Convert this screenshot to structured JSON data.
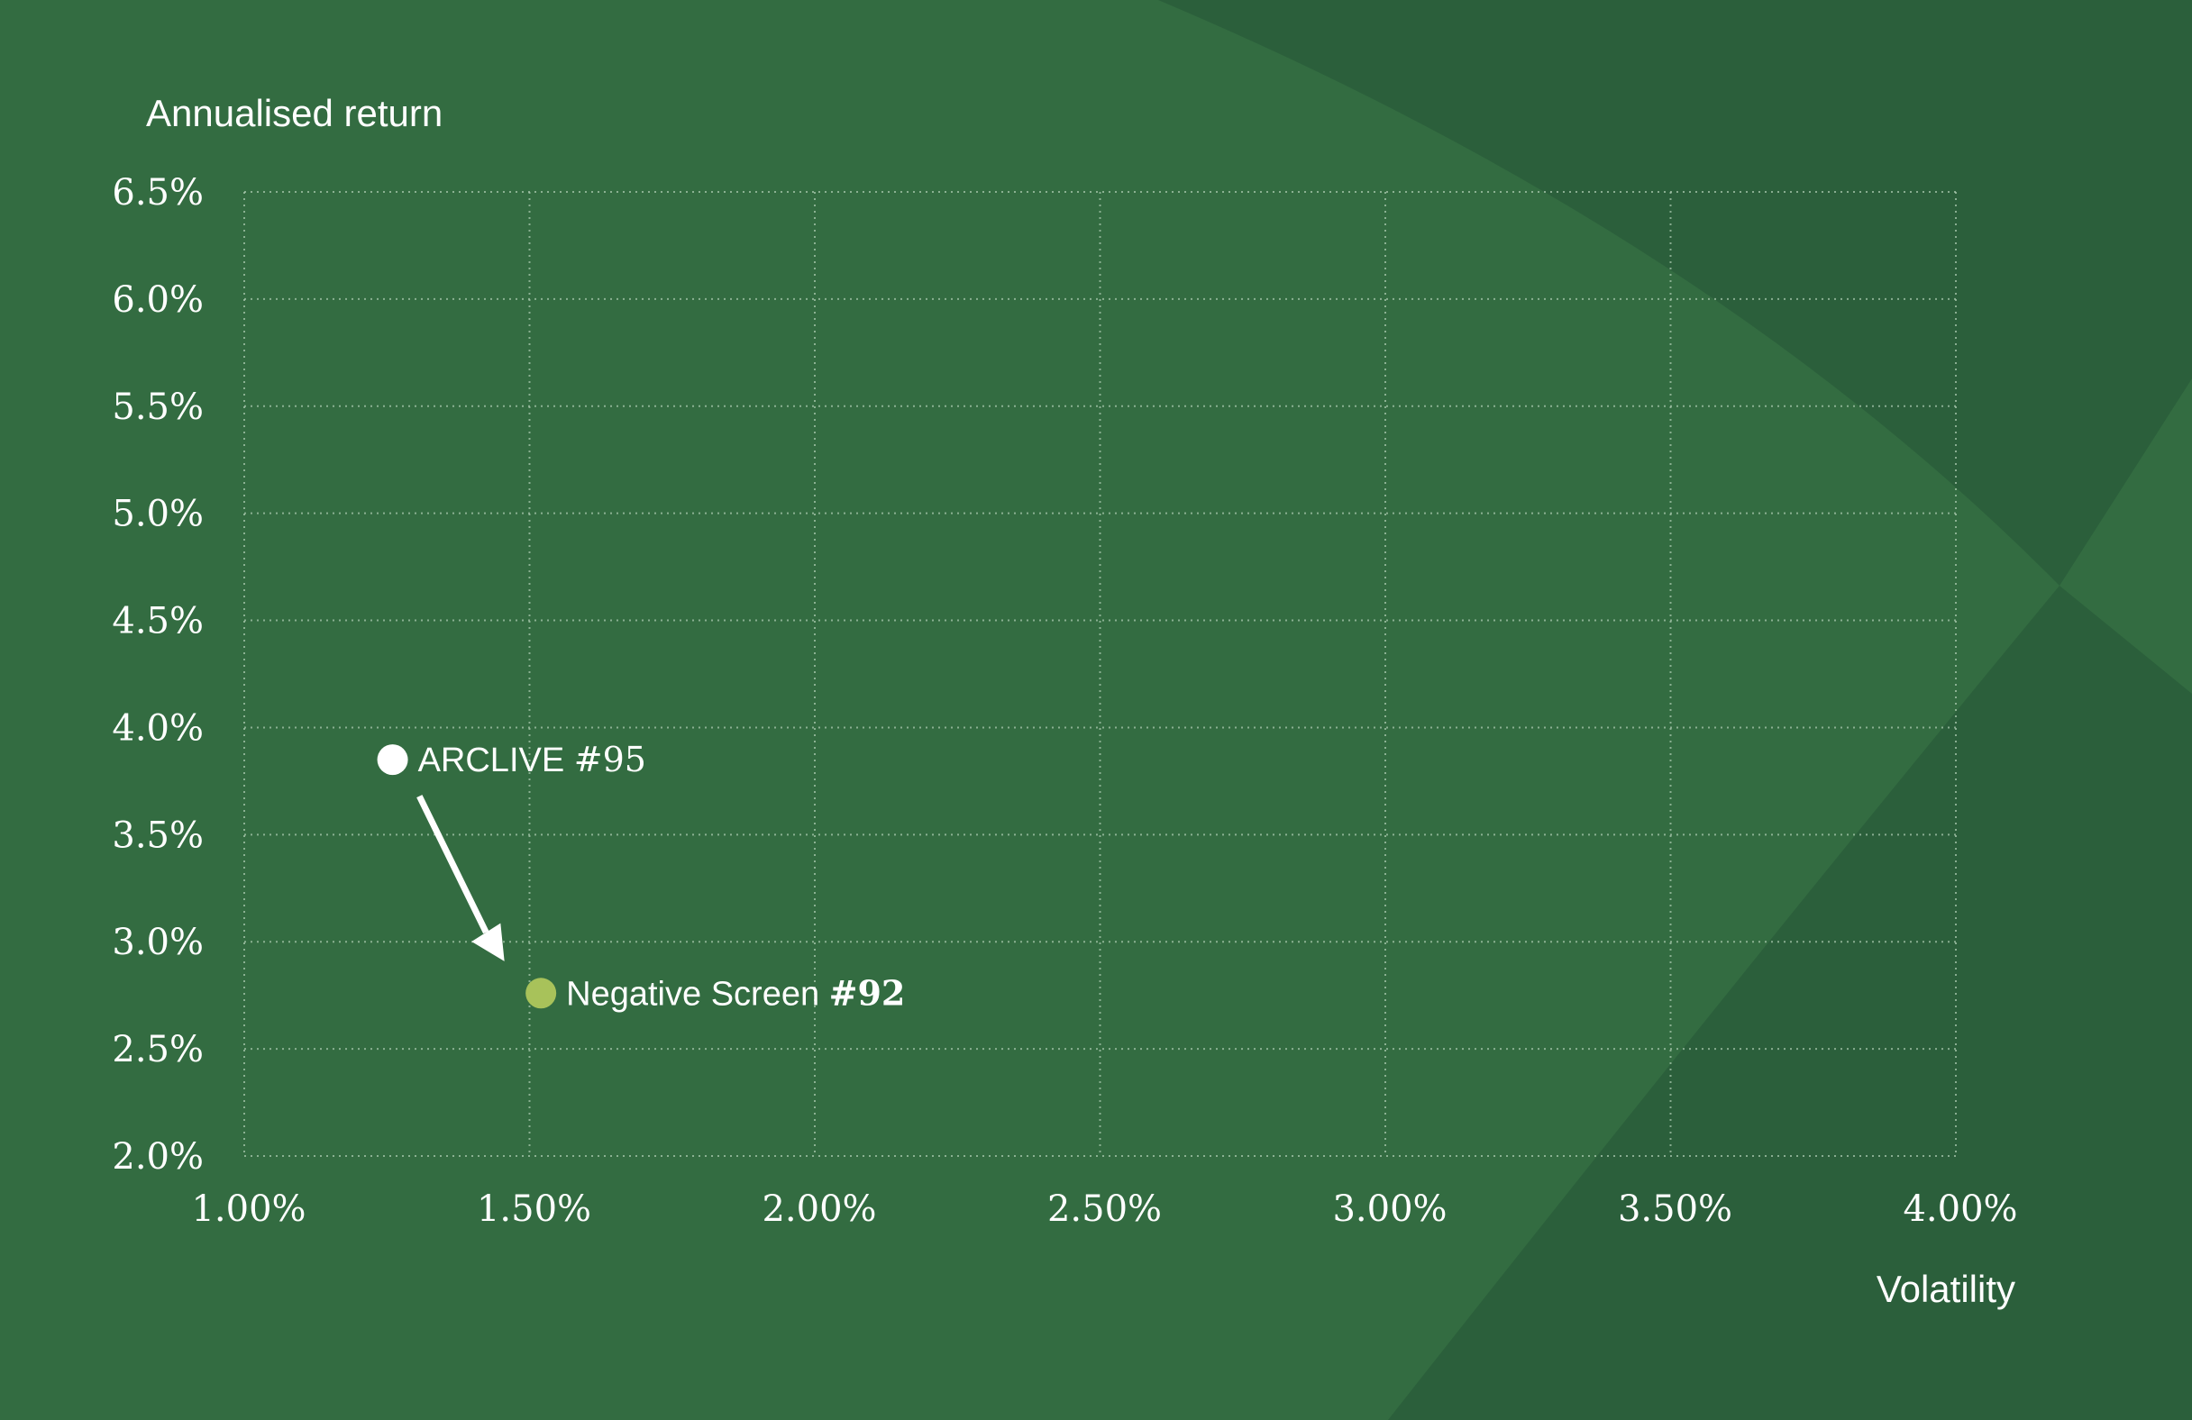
{
  "colors": {
    "background": "#336c41",
    "background_dark": "#2b5f3b",
    "grid": "#a9c8ae",
    "text": "#ffffff",
    "arclive_point": "#ffffff",
    "negative_screen_point": "#a8c25a"
  },
  "chart_data": {
    "type": "scatter",
    "xlabel": "Volatility",
    "ylabel": "Annualised return",
    "xlim": [
      1.0,
      4.0
    ],
    "ylim": [
      2.0,
      6.5
    ],
    "x_ticks": [
      "1.00%",
      "1.50%",
      "2.00%",
      "2.50%",
      "3.00%",
      "3.50%",
      "4.00%"
    ],
    "y_ticks": [
      "2.0%",
      "2.5%",
      "3.0%",
      "3.5%",
      "4.0%",
      "4.5%",
      "5.0%",
      "5.5%",
      "6.0%",
      "6.5%"
    ],
    "grid": true,
    "points": [
      {
        "name": "ARCLIVE",
        "rank": "#95",
        "x": 1.26,
        "y": 3.85,
        "color": "#ffffff"
      },
      {
        "name": "Negative Screen",
        "rank": "#92",
        "x": 1.52,
        "y": 2.76,
        "color": "#a8c25a"
      }
    ],
    "annotation": {
      "type": "arrow",
      "from": "ARCLIVE",
      "to": "Negative Screen"
    }
  }
}
